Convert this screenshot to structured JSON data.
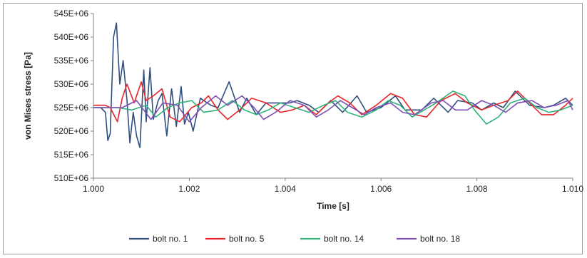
{
  "chart_data": {
    "type": "line",
    "title": "",
    "xlabel": "Time [s]",
    "ylabel": "von Mises stress [Pa]",
    "xlim": [
      1.0,
      1.01
    ],
    "ylim": [
      510000000,
      545000000
    ],
    "x_ticks": [
      "1.000",
      "1.002",
      "1.004",
      "1.006",
      "1.008",
      "1.010"
    ],
    "x_tick_values": [
      1.0,
      1.002,
      1.004,
      1.006,
      1.008,
      1.01
    ],
    "y_ticks": [
      "510E+06",
      "515E+06",
      "520E+06",
      "525E+06",
      "530E+06",
      "535E+06",
      "540E+06",
      "545E+06"
    ],
    "y_tick_values": [
      510000000,
      515000000,
      520000000,
      525000000,
      530000000,
      535000000,
      540000000,
      545000000
    ],
    "grid": false,
    "legend_position": "bottom",
    "series": [
      {
        "name": "bolt no. 1",
        "color": "#2f4f7f",
        "points": [
          [
            1.0,
            525.0
          ],
          [
            1.00015,
            525.0
          ],
          [
            1.00025,
            524.0
          ],
          [
            1.0003,
            518.0
          ],
          [
            1.00035,
            519.5
          ],
          [
            1.00042,
            540.0
          ],
          [
            1.00048,
            543.0
          ],
          [
            1.00055,
            530.0
          ],
          [
            1.00062,
            535.0
          ],
          [
            1.0007,
            526.5
          ],
          [
            1.00076,
            517.5
          ],
          [
            1.00083,
            524.0
          ],
          [
            1.0009,
            519.0
          ],
          [
            1.00097,
            516.5
          ],
          [
            1.00105,
            533.0
          ],
          [
            1.0011,
            522.0
          ],
          [
            1.00118,
            533.5
          ],
          [
            1.00125,
            522.5
          ],
          [
            1.00135,
            526.5
          ],
          [
            1.00143,
            528.0
          ],
          [
            1.00153,
            519.0
          ],
          [
            1.00163,
            529.0
          ],
          [
            1.00173,
            521.0
          ],
          [
            1.00183,
            529.5
          ],
          [
            1.0019,
            521.5
          ],
          [
            1.00198,
            524.0
          ],
          [
            1.00208,
            520.0
          ],
          [
            1.00223,
            527.0
          ],
          [
            1.00245,
            525.5
          ],
          [
            1.0026,
            525.0
          ],
          [
            1.00283,
            530.5
          ],
          [
            1.00305,
            524.0
          ],
          [
            1.0032,
            527.0
          ],
          [
            1.0034,
            523.5
          ],
          [
            1.0036,
            526.0
          ],
          [
            1.00385,
            526.0
          ],
          [
            1.0041,
            526.0
          ],
          [
            1.00425,
            526.5
          ],
          [
            1.0045,
            525.5
          ],
          [
            1.0047,
            524.0
          ],
          [
            1.00495,
            526.5
          ],
          [
            1.0052,
            524.0
          ],
          [
            1.0055,
            527.5
          ],
          [
            1.0057,
            524.0
          ],
          [
            1.006,
            525.0
          ],
          [
            1.0063,
            527.5
          ],
          [
            1.0065,
            524.5
          ],
          [
            1.00685,
            524.5
          ],
          [
            1.0071,
            527.0
          ],
          [
            1.0074,
            524.0
          ],
          [
            1.0076,
            526.5
          ],
          [
            1.0079,
            526.0
          ],
          [
            1.0081,
            524.5
          ],
          [
            1.00835,
            526.0
          ],
          [
            1.00855,
            525.0
          ],
          [
            1.0088,
            528.5
          ],
          [
            1.0091,
            525.5
          ],
          [
            1.0094,
            525.0
          ],
          [
            1.0096,
            525.5
          ],
          [
            1.00985,
            527.0
          ],
          [
            1.01,
            525.5
          ]
        ]
      },
      {
        "name": "bolt no. 5",
        "color": "#e8262a",
        "points": [
          [
            1.0,
            525.5
          ],
          [
            1.00025,
            525.5
          ],
          [
            1.00035,
            525.0
          ],
          [
            1.0005,
            522.0
          ],
          [
            1.0006,
            527.0
          ],
          [
            1.0007,
            530.0
          ],
          [
            1.00085,
            526.0
          ],
          [
            1.001,
            530.5
          ],
          [
            1.0011,
            526.5
          ],
          [
            1.00125,
            527.5
          ],
          [
            1.00143,
            529.0
          ],
          [
            1.0016,
            523.0
          ],
          [
            1.0018,
            522.0
          ],
          [
            1.00205,
            525.0
          ],
          [
            1.00225,
            526.0
          ],
          [
            1.0024,
            527.5
          ],
          [
            1.0026,
            524.5
          ],
          [
            1.0028,
            522.5
          ],
          [
            1.00305,
            524.5
          ],
          [
            1.0033,
            527.0
          ],
          [
            1.0036,
            526.0
          ],
          [
            1.0039,
            524.0
          ],
          [
            1.00415,
            524.5
          ],
          [
            1.0044,
            525.5
          ],
          [
            1.00465,
            523.5
          ],
          [
            1.0049,
            526.0
          ],
          [
            1.0051,
            527.5
          ],
          [
            1.00535,
            526.0
          ],
          [
            1.0056,
            523.5
          ],
          [
            1.0059,
            525.5
          ],
          [
            1.0062,
            528.0
          ],
          [
            1.00645,
            527.0
          ],
          [
            1.0067,
            523.5
          ],
          [
            1.00695,
            523.0
          ],
          [
            1.00725,
            526.5
          ],
          [
            1.00755,
            528.0
          ],
          [
            1.0078,
            526.0
          ],
          [
            1.0081,
            524.5
          ],
          [
            1.00835,
            525.5
          ],
          [
            1.00865,
            526.5
          ],
          [
            1.00885,
            528.5
          ],
          [
            1.0091,
            526.0
          ],
          [
            1.00935,
            523.5
          ],
          [
            1.0096,
            523.5
          ],
          [
            1.00985,
            525.5
          ],
          [
            1.01,
            527.0
          ]
        ]
      },
      {
        "name": "bolt no. 14",
        "color": "#2fb37a",
        "points": [
          [
            1.0,
            525.0
          ],
          [
            1.0005,
            525.0
          ],
          [
            1.0008,
            524.5
          ],
          [
            1.0011,
            525.5
          ],
          [
            1.0013,
            523.0
          ],
          [
            1.00155,
            525.0
          ],
          [
            1.0018,
            526.0
          ],
          [
            1.00205,
            526.5
          ],
          [
            1.0023,
            524.0
          ],
          [
            1.0026,
            524.5
          ],
          [
            1.0029,
            526.5
          ],
          [
            1.00315,
            524.5
          ],
          [
            1.0034,
            523.5
          ],
          [
            1.00365,
            524.5
          ],
          [
            1.0039,
            526.0
          ],
          [
            1.0042,
            525.0
          ],
          [
            1.0045,
            524.0
          ],
          [
            1.0048,
            525.5
          ],
          [
            1.00505,
            526.5
          ],
          [
            1.0053,
            524.0
          ],
          [
            1.0056,
            523.0
          ],
          [
            1.0059,
            524.5
          ],
          [
            1.00615,
            526.5
          ],
          [
            1.0064,
            525.5
          ],
          [
            1.00665,
            523.0
          ],
          [
            1.0069,
            524.5
          ],
          [
            1.00715,
            526.0
          ],
          [
            1.0075,
            528.5
          ],
          [
            1.00775,
            527.5
          ],
          [
            1.00795,
            524.5
          ],
          [
            1.0082,
            521.5
          ],
          [
            1.00845,
            523.0
          ],
          [
            1.0087,
            526.0
          ],
          [
            1.009,
            527.0
          ],
          [
            1.00925,
            525.0
          ],
          [
            1.0095,
            524.0
          ],
          [
            1.00975,
            524.5
          ],
          [
            1.01,
            525.5
          ]
        ]
      },
      {
        "name": "bolt no. 18",
        "color": "#7f4fb3",
        "points": [
          [
            1.0,
            525.0
          ],
          [
            1.0006,
            525.0
          ],
          [
            1.0009,
            526.5
          ],
          [
            1.0012,
            522.5
          ],
          [
            1.00145,
            526.0
          ],
          [
            1.00175,
            525.5
          ],
          [
            1.002,
            522.0
          ],
          [
            1.00225,
            525.0
          ],
          [
            1.00255,
            527.5
          ],
          [
            1.0028,
            525.5
          ],
          [
            1.0031,
            527.5
          ],
          [
            1.00335,
            525.0
          ],
          [
            1.00355,
            522.5
          ],
          [
            1.0038,
            524.0
          ],
          [
            1.0041,
            526.5
          ],
          [
            1.0044,
            525.5
          ],
          [
            1.00465,
            523.0
          ],
          [
            1.0049,
            524.5
          ],
          [
            1.00515,
            526.5
          ],
          [
            1.0054,
            525.0
          ],
          [
            1.00565,
            523.5
          ],
          [
            1.0059,
            525.0
          ],
          [
            1.0062,
            526.0
          ],
          [
            1.00645,
            524.0
          ],
          [
            1.0067,
            523.5
          ],
          [
            1.00705,
            526.0
          ],
          [
            1.0073,
            526.5
          ],
          [
            1.00755,
            524.5
          ],
          [
            1.0078,
            524.5
          ],
          [
            1.0081,
            526.5
          ],
          [
            1.00835,
            525.5
          ],
          [
            1.0086,
            524.0
          ],
          [
            1.00885,
            526.0
          ],
          [
            1.00915,
            526.5
          ],
          [
            1.0094,
            525.0
          ],
          [
            1.00965,
            525.5
          ],
          [
            1.0099,
            526.5
          ],
          [
            1.01,
            524.5
          ]
        ]
      }
    ]
  }
}
